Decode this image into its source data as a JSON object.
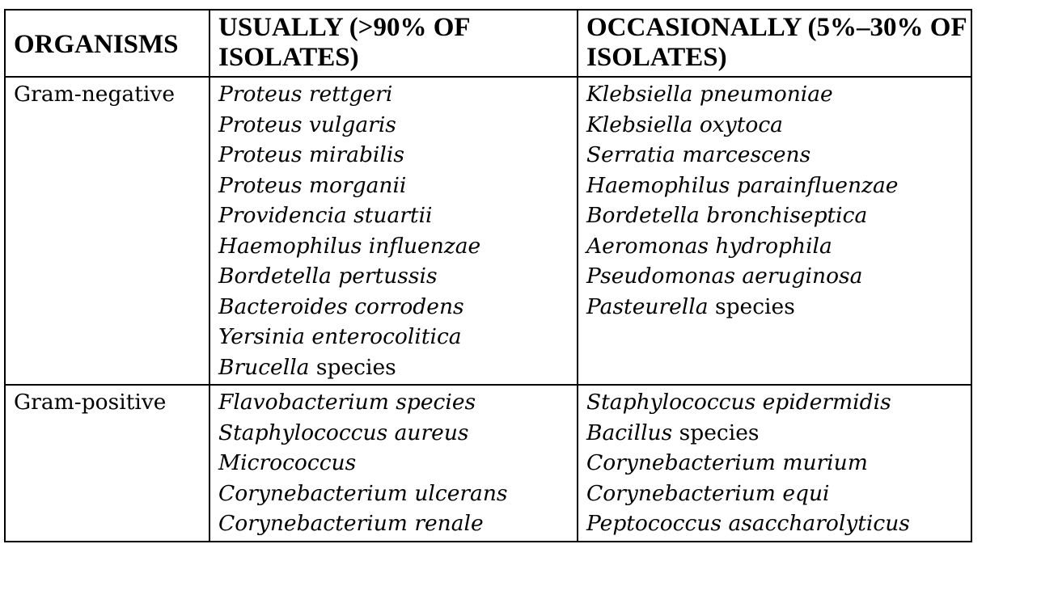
{
  "table": {
    "headers": [
      "ORGANISMS",
      "USUALLY (>90% OF ISOLATES)",
      "OCCASIONALLY (5%–30% OF ISOLATES)"
    ],
    "rows": [
      {
        "group": "Gram-negative",
        "usually": [
          {
            "name": "Proteus rettgeri",
            "suffix": ""
          },
          {
            "name": "Proteus vulgaris",
            "suffix": ""
          },
          {
            "name": "Proteus mirabilis",
            "suffix": ""
          },
          {
            "name": "Proteus morganii",
            "suffix": ""
          },
          {
            "name": "Providencia stuartii",
            "suffix": ""
          },
          {
            "name": "Haemophilus influenzae",
            "suffix": ""
          },
          {
            "name": "Bordetella pertussis",
            "suffix": ""
          },
          {
            "name": "Bacteroides corrodens",
            "suffix": ""
          },
          {
            "name": "Yersinia enterocolitica",
            "suffix": ""
          },
          {
            "name": "Brucella",
            "suffix": " species"
          }
        ],
        "occasionally": [
          {
            "name": "Klebsiella pneumoniae",
            "suffix": ""
          },
          {
            "name": "Klebsiella oxytoca",
            "suffix": ""
          },
          {
            "name": "Serratia marcescens",
            "suffix": ""
          },
          {
            "name": "Haemophilus parainfluenzae",
            "suffix": ""
          },
          {
            "name": "Bordetella bronchiseptica",
            "suffix": ""
          },
          {
            "name": "Aeromonas hydrophila",
            "suffix": ""
          },
          {
            "name": "Pseudomonas aeruginosa",
            "suffix": ""
          },
          {
            "name": "Pasteurella",
            "suffix": " species"
          }
        ]
      },
      {
        "group": "Gram-positive",
        "usually": [
          {
            "name": "Flavobacterium species",
            "suffix": ""
          },
          {
            "name": "Staphylococcus aureus",
            "suffix": ""
          },
          {
            "name": "Micrococcus",
            "suffix": ""
          },
          {
            "name": "Corynebacterium ulcerans",
            "suffix": ""
          },
          {
            "name": "Corynebacterium renale",
            "suffix": ""
          }
        ],
        "occasionally": [
          {
            "name": "Staphylococcus epidermidis",
            "suffix": ""
          },
          {
            "name": "Bacillus",
            "suffix": " species"
          },
          {
            "name": "Corynebacterium murium",
            "suffix": ""
          },
          {
            "name": "Corynebacterium equi",
            "suffix": ""
          },
          {
            "name": "Peptococcus asaccharolyticus",
            "suffix": ""
          }
        ]
      }
    ]
  }
}
